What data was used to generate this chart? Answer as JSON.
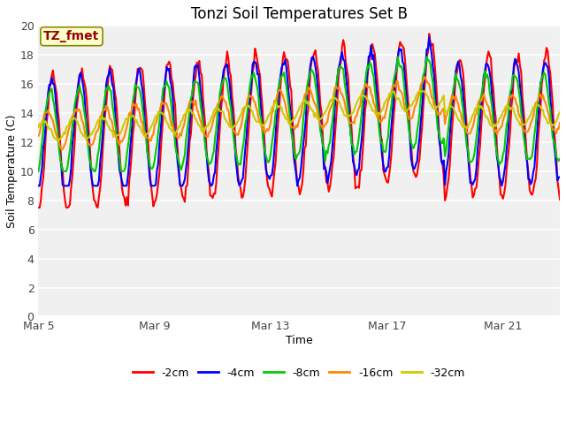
{
  "title": "Tonzi Soil Temperatures Set B",
  "xlabel": "Time",
  "ylabel": "Soil Temperature (C)",
  "ylim": [
    0,
    20
  ],
  "yticks": [
    0,
    2,
    4,
    6,
    8,
    10,
    12,
    14,
    16,
    18,
    20
  ],
  "x_tick_labels": [
    "Mar 5",
    "Mar 9",
    "Mar 13",
    "Mar 17",
    "Mar 21"
  ],
  "x_tick_positions": [
    0,
    96,
    192,
    288,
    384
  ],
  "annotation_text": "TZ_fmet",
  "annotation_color": "#990000",
  "annotation_bg": "#ffffcc",
  "series_labels": [
    "-2cm",
    "-4cm",
    "-8cm",
    "-16cm",
    "-32cm"
  ],
  "series_colors": [
    "#ff0000",
    "#0000ff",
    "#00cc00",
    "#ff8800",
    "#cccc00"
  ],
  "line_width": 1.5,
  "fig_bg": "#ffffff",
  "plot_bg": "#f0f0f0",
  "n_points": 432,
  "figsize": [
    6.4,
    4.8
  ],
  "dpi": 100
}
